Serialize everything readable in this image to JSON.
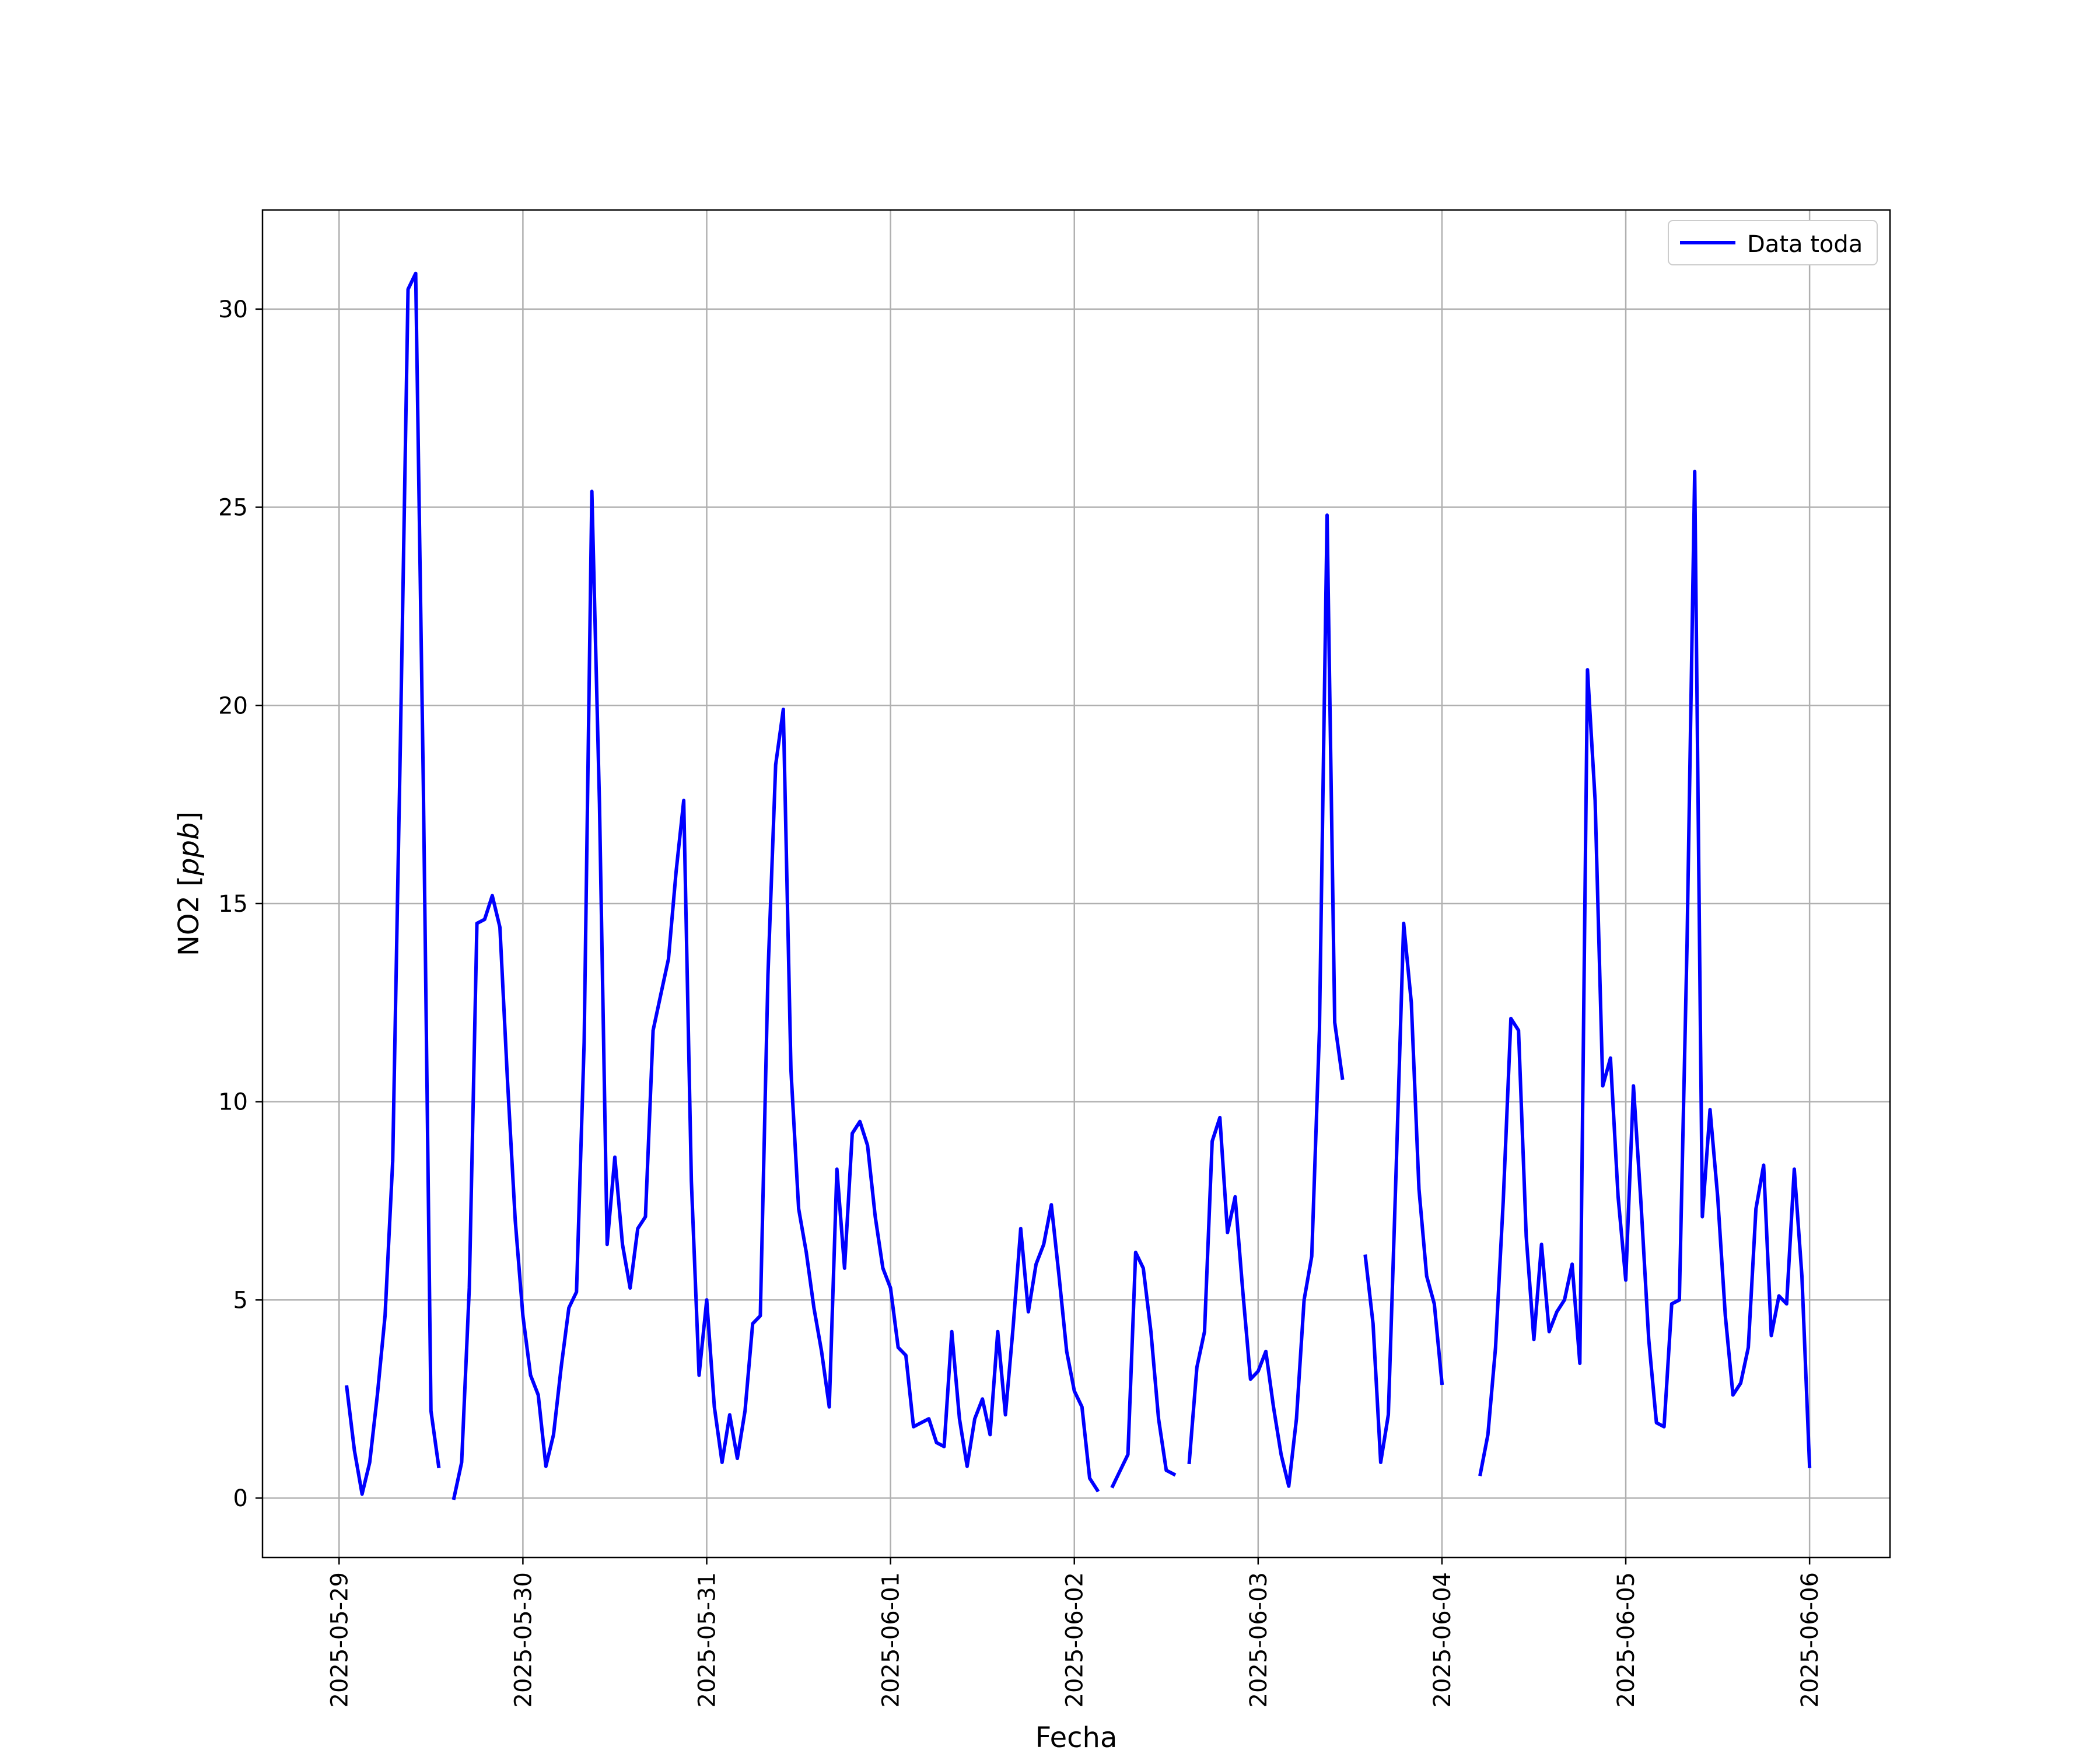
{
  "chart_data": {
    "type": "line",
    "xlabel": "Fecha",
    "ylabel_prefix": "NO2 [",
    "ylabel_unit": "ppb",
    "ylabel_suffix": "]",
    "ylim": [
      -1.5,
      32.5
    ],
    "xlim": [
      "2025-05-28T14:00",
      "2025-06-06T10:30"
    ],
    "grid": true,
    "legend_position": "top-right",
    "x_ticks": [
      "2025-05-29",
      "2025-05-30",
      "2025-05-31",
      "2025-06-01",
      "2025-06-02",
      "2025-06-03",
      "2025-06-04",
      "2025-06-05",
      "2025-06-06"
    ],
    "y_ticks": [
      0,
      5,
      10,
      15,
      20,
      25,
      30
    ],
    "series": [
      {
        "name": "Data toda",
        "color": "#0000ff",
        "points": [
          [
            "2025-05-29T01:00",
            2.8
          ],
          [
            "2025-05-29T02:00",
            1.2
          ],
          [
            "2025-05-29T03:00",
            0.1
          ],
          [
            "2025-05-29T04:00",
            0.9
          ],
          [
            "2025-05-29T05:00",
            2.6
          ],
          [
            "2025-05-29T06:00",
            4.6
          ],
          [
            "2025-05-29T07:00",
            8.5
          ],
          [
            "2025-05-29T08:00",
            19.0
          ],
          [
            "2025-05-29T09:00",
            30.5
          ],
          [
            "2025-05-29T10:00",
            30.9
          ],
          [
            "2025-05-29T11:00",
            18.0
          ],
          [
            "2025-05-29T12:00",
            2.2
          ],
          [
            "2025-05-29T13:00",
            0.8
          ],
          null,
          [
            "2025-05-29T15:00",
            0.0
          ],
          [
            "2025-05-29T16:00",
            0.9
          ],
          [
            "2025-05-29T17:00",
            5.3
          ],
          [
            "2025-05-29T18:00",
            14.5
          ],
          [
            "2025-05-29T19:00",
            14.6
          ],
          [
            "2025-05-29T20:00",
            15.2
          ],
          [
            "2025-05-29T21:00",
            14.4
          ],
          [
            "2025-05-29T22:00",
            10.5
          ],
          [
            "2025-05-29T23:00",
            7.0
          ],
          [
            "2025-05-30T00:00",
            4.6
          ],
          [
            "2025-05-30T01:00",
            3.1
          ],
          [
            "2025-05-30T02:00",
            2.6
          ],
          [
            "2025-05-30T03:00",
            0.8
          ],
          [
            "2025-05-30T04:00",
            1.6
          ],
          [
            "2025-05-30T05:00",
            3.3
          ],
          [
            "2025-05-30T06:00",
            4.8
          ],
          [
            "2025-05-30T07:00",
            5.2
          ],
          [
            "2025-05-30T08:00",
            11.5
          ],
          [
            "2025-05-30T09:00",
            25.4
          ],
          [
            "2025-05-30T10:00",
            17.5
          ],
          [
            "2025-05-30T11:00",
            6.4
          ],
          [
            "2025-05-30T12:00",
            8.6
          ],
          [
            "2025-05-30T13:00",
            6.4
          ],
          [
            "2025-05-30T14:00",
            5.3
          ],
          [
            "2025-05-30T15:00",
            6.8
          ],
          [
            "2025-05-30T16:00",
            7.1
          ],
          [
            "2025-05-30T17:00",
            11.8
          ],
          [
            "2025-05-30T18:00",
            12.7
          ],
          [
            "2025-05-30T19:00",
            13.6
          ],
          [
            "2025-05-30T20:00",
            15.8
          ],
          [
            "2025-05-30T21:00",
            17.6
          ],
          [
            "2025-05-30T22:00",
            8.0
          ],
          [
            "2025-05-30T23:00",
            3.1
          ],
          [
            "2025-05-31T00:00",
            5.0
          ],
          [
            "2025-05-31T01:00",
            2.3
          ],
          [
            "2025-05-31T02:00",
            0.9
          ],
          [
            "2025-05-31T03:00",
            2.1
          ],
          [
            "2025-05-31T04:00",
            1.0
          ],
          [
            "2025-05-31T05:00",
            2.2
          ],
          [
            "2025-05-31T06:00",
            4.4
          ],
          [
            "2025-05-31T07:00",
            4.6
          ],
          [
            "2025-05-31T08:00",
            13.2
          ],
          [
            "2025-05-31T09:00",
            18.5
          ],
          [
            "2025-05-31T10:00",
            19.9
          ],
          [
            "2025-05-31T11:00",
            10.8
          ],
          [
            "2025-05-31T12:00",
            7.3
          ],
          [
            "2025-05-31T13:00",
            6.2
          ],
          [
            "2025-05-31T14:00",
            4.8
          ],
          [
            "2025-05-31T15:00",
            3.7
          ],
          [
            "2025-05-31T16:00",
            2.3
          ],
          [
            "2025-05-31T17:00",
            8.3
          ],
          [
            "2025-05-31T18:00",
            5.8
          ],
          [
            "2025-05-31T19:00",
            9.2
          ],
          [
            "2025-05-31T20:00",
            9.5
          ],
          [
            "2025-05-31T21:00",
            8.9
          ],
          [
            "2025-05-31T22:00",
            7.1
          ],
          [
            "2025-05-31T23:00",
            5.8
          ],
          [
            "2025-06-01T00:00",
            5.3
          ],
          [
            "2025-06-01T01:00",
            3.8
          ],
          [
            "2025-06-01T02:00",
            3.6
          ],
          [
            "2025-06-01T03:00",
            1.8
          ],
          [
            "2025-06-01T04:00",
            1.9
          ],
          [
            "2025-06-01T05:00",
            2.0
          ],
          [
            "2025-06-01T06:00",
            1.4
          ],
          [
            "2025-06-01T07:00",
            1.3
          ],
          [
            "2025-06-01T08:00",
            4.2
          ],
          [
            "2025-06-01T09:00",
            2.0
          ],
          [
            "2025-06-01T10:00",
            0.8
          ],
          [
            "2025-06-01T11:00",
            2.0
          ],
          [
            "2025-06-01T12:00",
            2.5
          ],
          [
            "2025-06-01T13:00",
            1.6
          ],
          [
            "2025-06-01T14:00",
            4.2
          ],
          [
            "2025-06-01T15:00",
            2.1
          ],
          [
            "2025-06-01T16:00",
            4.3
          ],
          [
            "2025-06-01T17:00",
            6.8
          ],
          [
            "2025-06-01T18:00",
            4.7
          ],
          [
            "2025-06-01T19:00",
            5.9
          ],
          [
            "2025-06-01T20:00",
            6.4
          ],
          [
            "2025-06-01T21:00",
            7.4
          ],
          [
            "2025-06-01T22:00",
            5.6
          ],
          [
            "2025-06-01T23:00",
            3.7
          ],
          [
            "2025-06-02T00:00",
            2.7
          ],
          [
            "2025-06-02T01:00",
            2.3
          ],
          [
            "2025-06-02T02:00",
            0.5
          ],
          [
            "2025-06-02T03:00",
            0.2
          ],
          null,
          [
            "2025-06-02T05:00",
            0.3
          ],
          [
            "2025-06-02T06:00",
            0.7
          ],
          [
            "2025-06-02T07:00",
            1.1
          ],
          [
            "2025-06-02T08:00",
            6.2
          ],
          [
            "2025-06-02T09:00",
            5.8
          ],
          [
            "2025-06-02T10:00",
            4.2
          ],
          [
            "2025-06-02T11:00",
            2.0
          ],
          [
            "2025-06-02T12:00",
            0.7
          ],
          [
            "2025-06-02T13:00",
            0.6
          ],
          null,
          [
            "2025-06-02T15:00",
            0.9
          ],
          [
            "2025-06-02T16:00",
            3.3
          ],
          [
            "2025-06-02T17:00",
            4.2
          ],
          [
            "2025-06-02T18:00",
            9.0
          ],
          [
            "2025-06-02T19:00",
            9.6
          ],
          [
            "2025-06-02T20:00",
            6.7
          ],
          [
            "2025-06-02T21:00",
            7.6
          ],
          [
            "2025-06-02T22:00",
            5.2
          ],
          [
            "2025-06-02T23:00",
            3.0
          ],
          [
            "2025-06-03T00:00",
            3.2
          ],
          [
            "2025-06-03T01:00",
            3.7
          ],
          [
            "2025-06-03T02:00",
            2.3
          ],
          [
            "2025-06-03T03:00",
            1.1
          ],
          [
            "2025-06-03T04:00",
            0.3
          ],
          [
            "2025-06-03T05:00",
            2.0
          ],
          [
            "2025-06-03T06:00",
            5.0
          ],
          [
            "2025-06-03T07:00",
            6.1
          ],
          [
            "2025-06-03T08:00",
            11.8
          ],
          [
            "2025-06-03T09:00",
            24.8
          ],
          [
            "2025-06-03T10:00",
            12.0
          ],
          [
            "2025-06-03T11:00",
            10.6
          ],
          null,
          [
            "2025-06-03T14:00",
            6.1
          ],
          [
            "2025-06-03T15:00",
            4.4
          ],
          [
            "2025-06-03T16:00",
            0.9
          ],
          [
            "2025-06-03T17:00",
            2.1
          ],
          [
            "2025-06-03T18:00",
            8.2
          ],
          [
            "2025-06-03T19:00",
            14.5
          ],
          [
            "2025-06-03T20:00",
            12.5
          ],
          [
            "2025-06-03T21:00",
            7.8
          ],
          [
            "2025-06-03T22:00",
            5.6
          ],
          [
            "2025-06-03T23:00",
            4.9
          ],
          [
            "2025-06-04T00:00",
            2.9
          ],
          null,
          [
            "2025-06-04T05:00",
            0.6
          ],
          [
            "2025-06-04T06:00",
            1.6
          ],
          [
            "2025-06-04T07:00",
            3.8
          ],
          [
            "2025-06-04T08:00",
            7.5
          ],
          [
            "2025-06-04T09:00",
            12.1
          ],
          [
            "2025-06-04T10:00",
            11.8
          ],
          [
            "2025-06-04T11:00",
            6.6
          ],
          [
            "2025-06-04T12:00",
            4.0
          ],
          [
            "2025-06-04T13:00",
            6.4
          ],
          [
            "2025-06-04T14:00",
            4.2
          ],
          [
            "2025-06-04T15:00",
            4.7
          ],
          [
            "2025-06-04T16:00",
            5.0
          ],
          [
            "2025-06-04T17:00",
            5.9
          ],
          [
            "2025-06-04T18:00",
            3.4
          ],
          [
            "2025-06-04T19:00",
            20.9
          ],
          [
            "2025-06-04T20:00",
            17.6
          ],
          [
            "2025-06-04T21:00",
            10.4
          ],
          [
            "2025-06-04T22:00",
            11.1
          ],
          [
            "2025-06-04T23:00",
            7.6
          ],
          [
            "2025-06-05T00:00",
            5.5
          ],
          [
            "2025-06-05T01:00",
            10.4
          ],
          [
            "2025-06-05T02:00",
            7.4
          ],
          [
            "2025-06-05T03:00",
            4.0
          ],
          [
            "2025-06-05T04:00",
            1.9
          ],
          [
            "2025-06-05T05:00",
            1.8
          ],
          [
            "2025-06-05T06:00",
            4.9
          ],
          [
            "2025-06-05T07:00",
            5.0
          ],
          [
            "2025-06-05T08:00",
            14.0
          ],
          [
            "2025-06-05T09:00",
            25.9
          ],
          [
            "2025-06-05T10:00",
            7.1
          ],
          [
            "2025-06-05T11:00",
            9.8
          ],
          [
            "2025-06-05T12:00",
            7.6
          ],
          [
            "2025-06-05T13:00",
            4.6
          ],
          [
            "2025-06-05T14:00",
            2.6
          ],
          [
            "2025-06-05T15:00",
            2.9
          ],
          [
            "2025-06-05T16:00",
            3.8
          ],
          [
            "2025-06-05T17:00",
            7.3
          ],
          [
            "2025-06-05T18:00",
            8.4
          ],
          [
            "2025-06-05T19:00",
            4.1
          ],
          [
            "2025-06-05T20:00",
            5.1
          ],
          [
            "2025-06-05T21:00",
            4.9
          ],
          [
            "2025-06-05T22:00",
            8.3
          ],
          [
            "2025-06-05T23:00",
            5.6
          ],
          [
            "2025-06-06T00:00",
            0.8
          ]
        ]
      }
    ]
  }
}
